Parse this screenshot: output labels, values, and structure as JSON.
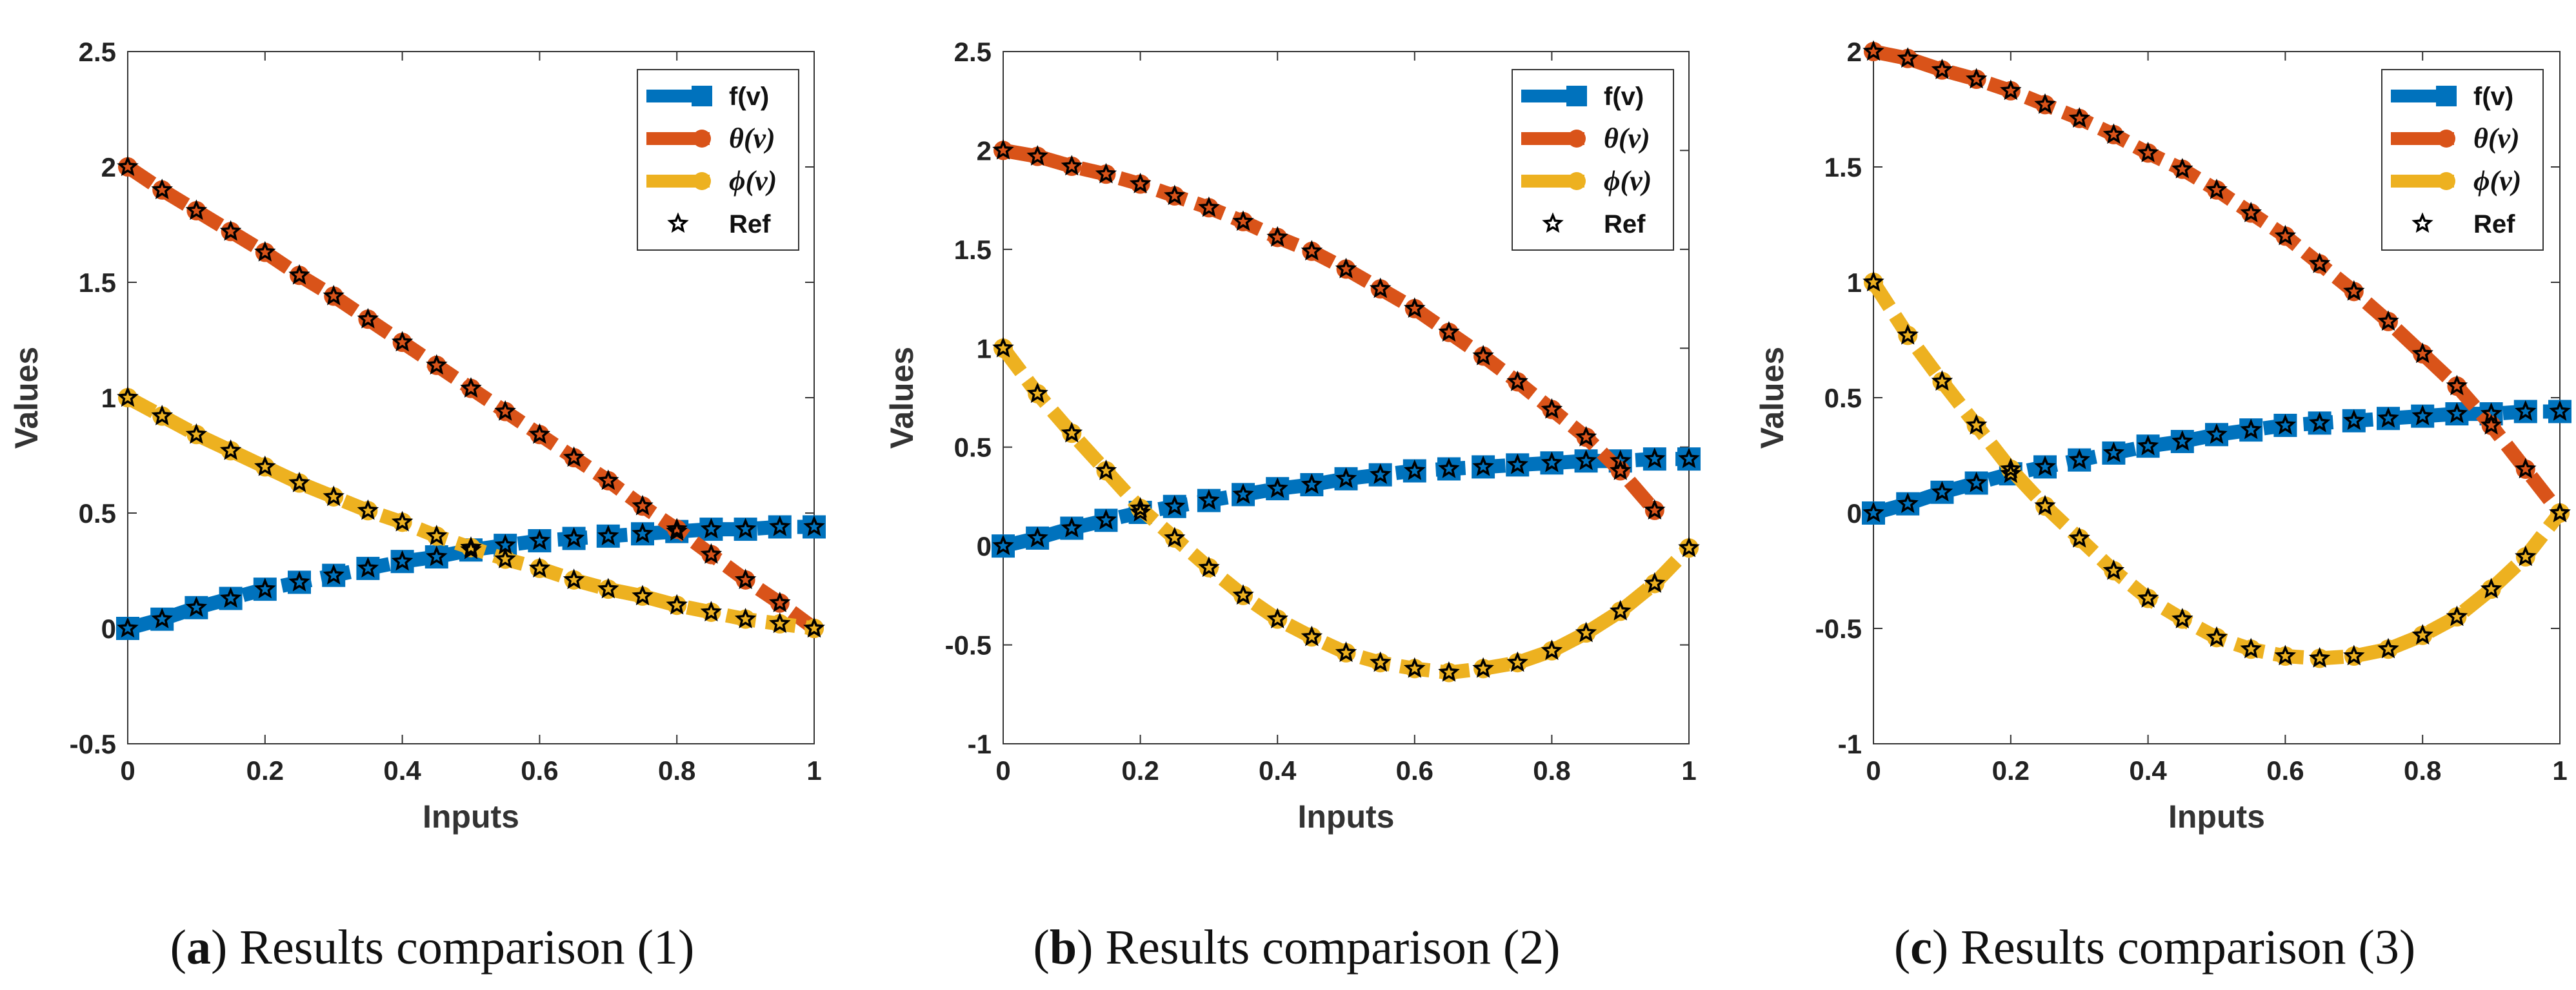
{
  "chart_data": [
    {
      "type": "line",
      "panel_letter": "a",
      "caption": "Results comparison (1)",
      "xlabel": "Inputs",
      "ylabel": "Values",
      "xlim": [
        0,
        1
      ],
      "ylim": [
        -0.5,
        2.5
      ],
      "xticks": [
        0,
        0.2,
        0.4,
        0.6,
        0.8,
        1
      ],
      "xtick_labels": [
        "0",
        "0.2",
        "0.4",
        "0.6",
        "0.8",
        "1"
      ],
      "yticks": [
        -0.5,
        0,
        0.5,
        1,
        1.5,
        2,
        2.5
      ],
      "ytick_labels": [
        "-0.5",
        "0",
        "0.5",
        "1",
        "1.5",
        "2",
        "2.5"
      ],
      "legend_position": "top-right",
      "series": [
        {
          "name": "f(v)",
          "color": "#0072BD",
          "marker": "square",
          "x": [
            0,
            0.05,
            0.1,
            0.15,
            0.2,
            0.25,
            0.3,
            0.35,
            0.4,
            0.45,
            0.5,
            0.55,
            0.6,
            0.65,
            0.7,
            0.75,
            0.8,
            0.85,
            0.9,
            0.95,
            1
          ],
          "y": [
            0,
            0.04,
            0.09,
            0.13,
            0.17,
            0.2,
            0.23,
            0.26,
            0.29,
            0.31,
            0.34,
            0.36,
            0.38,
            0.39,
            0.4,
            0.41,
            0.42,
            0.43,
            0.43,
            0.44,
            0.44
          ]
        },
        {
          "name": "θ(v)",
          "color": "#D95319",
          "marker": "circle",
          "x": [
            0,
            0.05,
            0.1,
            0.15,
            0.2,
            0.25,
            0.3,
            0.35,
            0.4,
            0.45,
            0.5,
            0.55,
            0.6,
            0.65,
            0.7,
            0.75,
            0.8,
            0.85,
            0.9,
            0.95,
            1
          ],
          "y": [
            2.0,
            1.9,
            1.81,
            1.72,
            1.63,
            1.53,
            1.44,
            1.34,
            1.24,
            1.14,
            1.04,
            0.94,
            0.84,
            0.74,
            0.64,
            0.53,
            0.43,
            0.32,
            0.21,
            0.11,
            0
          ]
        },
        {
          "name": "ϕ(v)",
          "color": "#EDB120",
          "marker": "circle",
          "x": [
            0,
            0.05,
            0.1,
            0.15,
            0.2,
            0.25,
            0.3,
            0.35,
            0.4,
            0.45,
            0.5,
            0.55,
            0.6,
            0.65,
            0.7,
            0.75,
            0.8,
            0.85,
            0.9,
            0.95,
            1
          ],
          "y": [
            1.0,
            0.92,
            0.84,
            0.77,
            0.7,
            0.63,
            0.57,
            0.51,
            0.46,
            0.4,
            0.35,
            0.3,
            0.26,
            0.21,
            0.17,
            0.14,
            0.1,
            0.07,
            0.04,
            0.02,
            0
          ]
        },
        {
          "name": "Ref",
          "color": "#000000",
          "marker": "star",
          "style": "markers-only",
          "source_series": [
            0,
            1,
            2
          ]
        }
      ]
    },
    {
      "type": "line",
      "panel_letter": "b",
      "caption": "Results comparison (2)",
      "xlabel": "Inputs",
      "ylabel": "Values",
      "xlim": [
        0,
        1
      ],
      "ylim": [
        -1,
        2.5
      ],
      "xticks": [
        0,
        0.2,
        0.4,
        0.6,
        0.8,
        1
      ],
      "xtick_labels": [
        "0",
        "0.2",
        "0.4",
        "0.6",
        "0.8",
        "1"
      ],
      "yticks": [
        -1,
        -0.5,
        0,
        0.5,
        1,
        1.5,
        2,
        2.5
      ],
      "ytick_labels": [
        "-1",
        "-0.5",
        "0",
        "0.5",
        "1",
        "1.5",
        "2",
        "2.5"
      ],
      "legend_position": "top-right",
      "series": [
        {
          "name": "f(v)",
          "color": "#0072BD",
          "marker": "square",
          "x": [
            0,
            0.05,
            0.1,
            0.15,
            0.2,
            0.25,
            0.3,
            0.35,
            0.4,
            0.45,
            0.5,
            0.55,
            0.6,
            0.65,
            0.7,
            0.75,
            0.8,
            0.85,
            0.9,
            0.95,
            1
          ],
          "y": [
            0,
            0.04,
            0.09,
            0.13,
            0.17,
            0.2,
            0.23,
            0.26,
            0.29,
            0.31,
            0.34,
            0.36,
            0.38,
            0.39,
            0.4,
            0.41,
            0.42,
            0.43,
            0.43,
            0.44,
            0.44
          ]
        },
        {
          "name": "θ(v)",
          "color": "#D95319",
          "marker": "circle",
          "x": [
            0,
            0.05,
            0.1,
            0.15,
            0.2,
            0.25,
            0.3,
            0.35,
            0.4,
            0.45,
            0.5,
            0.55,
            0.6,
            0.65,
            0.7,
            0.75,
            0.8,
            0.85,
            0.9,
            0.95
          ],
          "y": [
            2.0,
            1.97,
            1.92,
            1.88,
            1.83,
            1.77,
            1.71,
            1.64,
            1.56,
            1.49,
            1.4,
            1.3,
            1.2,
            1.08,
            0.96,
            0.83,
            0.69,
            0.55,
            0.38,
            0.18
          ]
        },
        {
          "name": "ϕ(v)",
          "color": "#EDB120",
          "marker": "circle",
          "x": [
            0,
            0.05,
            0.1,
            0.15,
            0.2,
            0.25,
            0.3,
            0.35,
            0.4,
            0.45,
            0.5,
            0.55,
            0.6,
            0.65,
            0.7,
            0.75,
            0.8,
            0.85,
            0.9,
            0.95,
            1
          ],
          "y": [
            1.0,
            0.77,
            0.57,
            0.38,
            0.19,
            0.04,
            -0.11,
            -0.25,
            -0.37,
            -0.46,
            -0.54,
            -0.59,
            -0.62,
            -0.64,
            -0.62,
            -0.59,
            -0.53,
            -0.44,
            -0.33,
            -0.19,
            -0.01
          ]
        },
        {
          "name": "Ref",
          "color": "#000000",
          "marker": "star",
          "style": "markers-only",
          "source_series": [
            0,
            1,
            2
          ]
        }
      ]
    },
    {
      "type": "line",
      "panel_letter": "c",
      "caption": "Results comparison (3)",
      "xlabel": "Inputs",
      "ylabel": "Values",
      "xlim": [
        0,
        1
      ],
      "ylim": [
        -1,
        2
      ],
      "xticks": [
        0,
        0.2,
        0.4,
        0.6,
        0.8,
        1
      ],
      "xtick_labels": [
        "0",
        "0.2",
        "0.4",
        "0.6",
        "0.8",
        "1"
      ],
      "yticks": [
        -1,
        -0.5,
        0,
        0.5,
        1,
        1.5,
        2
      ],
      "ytick_labels": [
        "-1",
        "-0.5",
        "0",
        "0.5",
        "1",
        "1.5",
        "2"
      ],
      "legend_position": "top-right",
      "series": [
        {
          "name": "f(v)",
          "color": "#0072BD",
          "marker": "square",
          "x": [
            0,
            0.05,
            0.1,
            0.15,
            0.2,
            0.25,
            0.3,
            0.35,
            0.4,
            0.45,
            0.5,
            0.55,
            0.6,
            0.65,
            0.7,
            0.75,
            0.8,
            0.85,
            0.9,
            0.95,
            1
          ],
          "y": [
            0,
            0.04,
            0.09,
            0.13,
            0.17,
            0.2,
            0.23,
            0.26,
            0.29,
            0.31,
            0.34,
            0.36,
            0.38,
            0.39,
            0.4,
            0.41,
            0.42,
            0.43,
            0.43,
            0.44,
            0.44
          ]
        },
        {
          "name": "θ(v)",
          "color": "#D95319",
          "marker": "circle",
          "x": [
            0,
            0.05,
            0.1,
            0.15,
            0.2,
            0.25,
            0.3,
            0.35,
            0.4,
            0.45,
            0.5,
            0.55,
            0.6,
            0.65,
            0.7,
            0.75,
            0.8,
            0.85,
            0.9,
            0.95,
            1
          ],
          "y": [
            2.0,
            1.97,
            1.92,
            1.88,
            1.83,
            1.77,
            1.71,
            1.64,
            1.56,
            1.49,
            1.4,
            1.3,
            1.2,
            1.08,
            0.96,
            0.83,
            0.69,
            0.55,
            0.38,
            0.19,
            0
          ]
        },
        {
          "name": "ϕ(v)",
          "color": "#EDB120",
          "marker": "circle",
          "x": [
            0,
            0.05,
            0.1,
            0.15,
            0.2,
            0.25,
            0.3,
            0.35,
            0.4,
            0.45,
            0.5,
            0.55,
            0.6,
            0.65,
            0.7,
            0.75,
            0.8,
            0.85,
            0.9,
            0.95,
            1
          ],
          "y": [
            1.0,
            0.77,
            0.57,
            0.38,
            0.19,
            0.03,
            -0.11,
            -0.25,
            -0.37,
            -0.46,
            -0.54,
            -0.59,
            -0.62,
            -0.63,
            -0.62,
            -0.59,
            -0.53,
            -0.45,
            -0.33,
            -0.19,
            0
          ]
        },
        {
          "name": "Ref",
          "color": "#000000",
          "marker": "star",
          "style": "markers-only",
          "source_series": [
            0,
            1,
            2
          ]
        }
      ]
    }
  ]
}
